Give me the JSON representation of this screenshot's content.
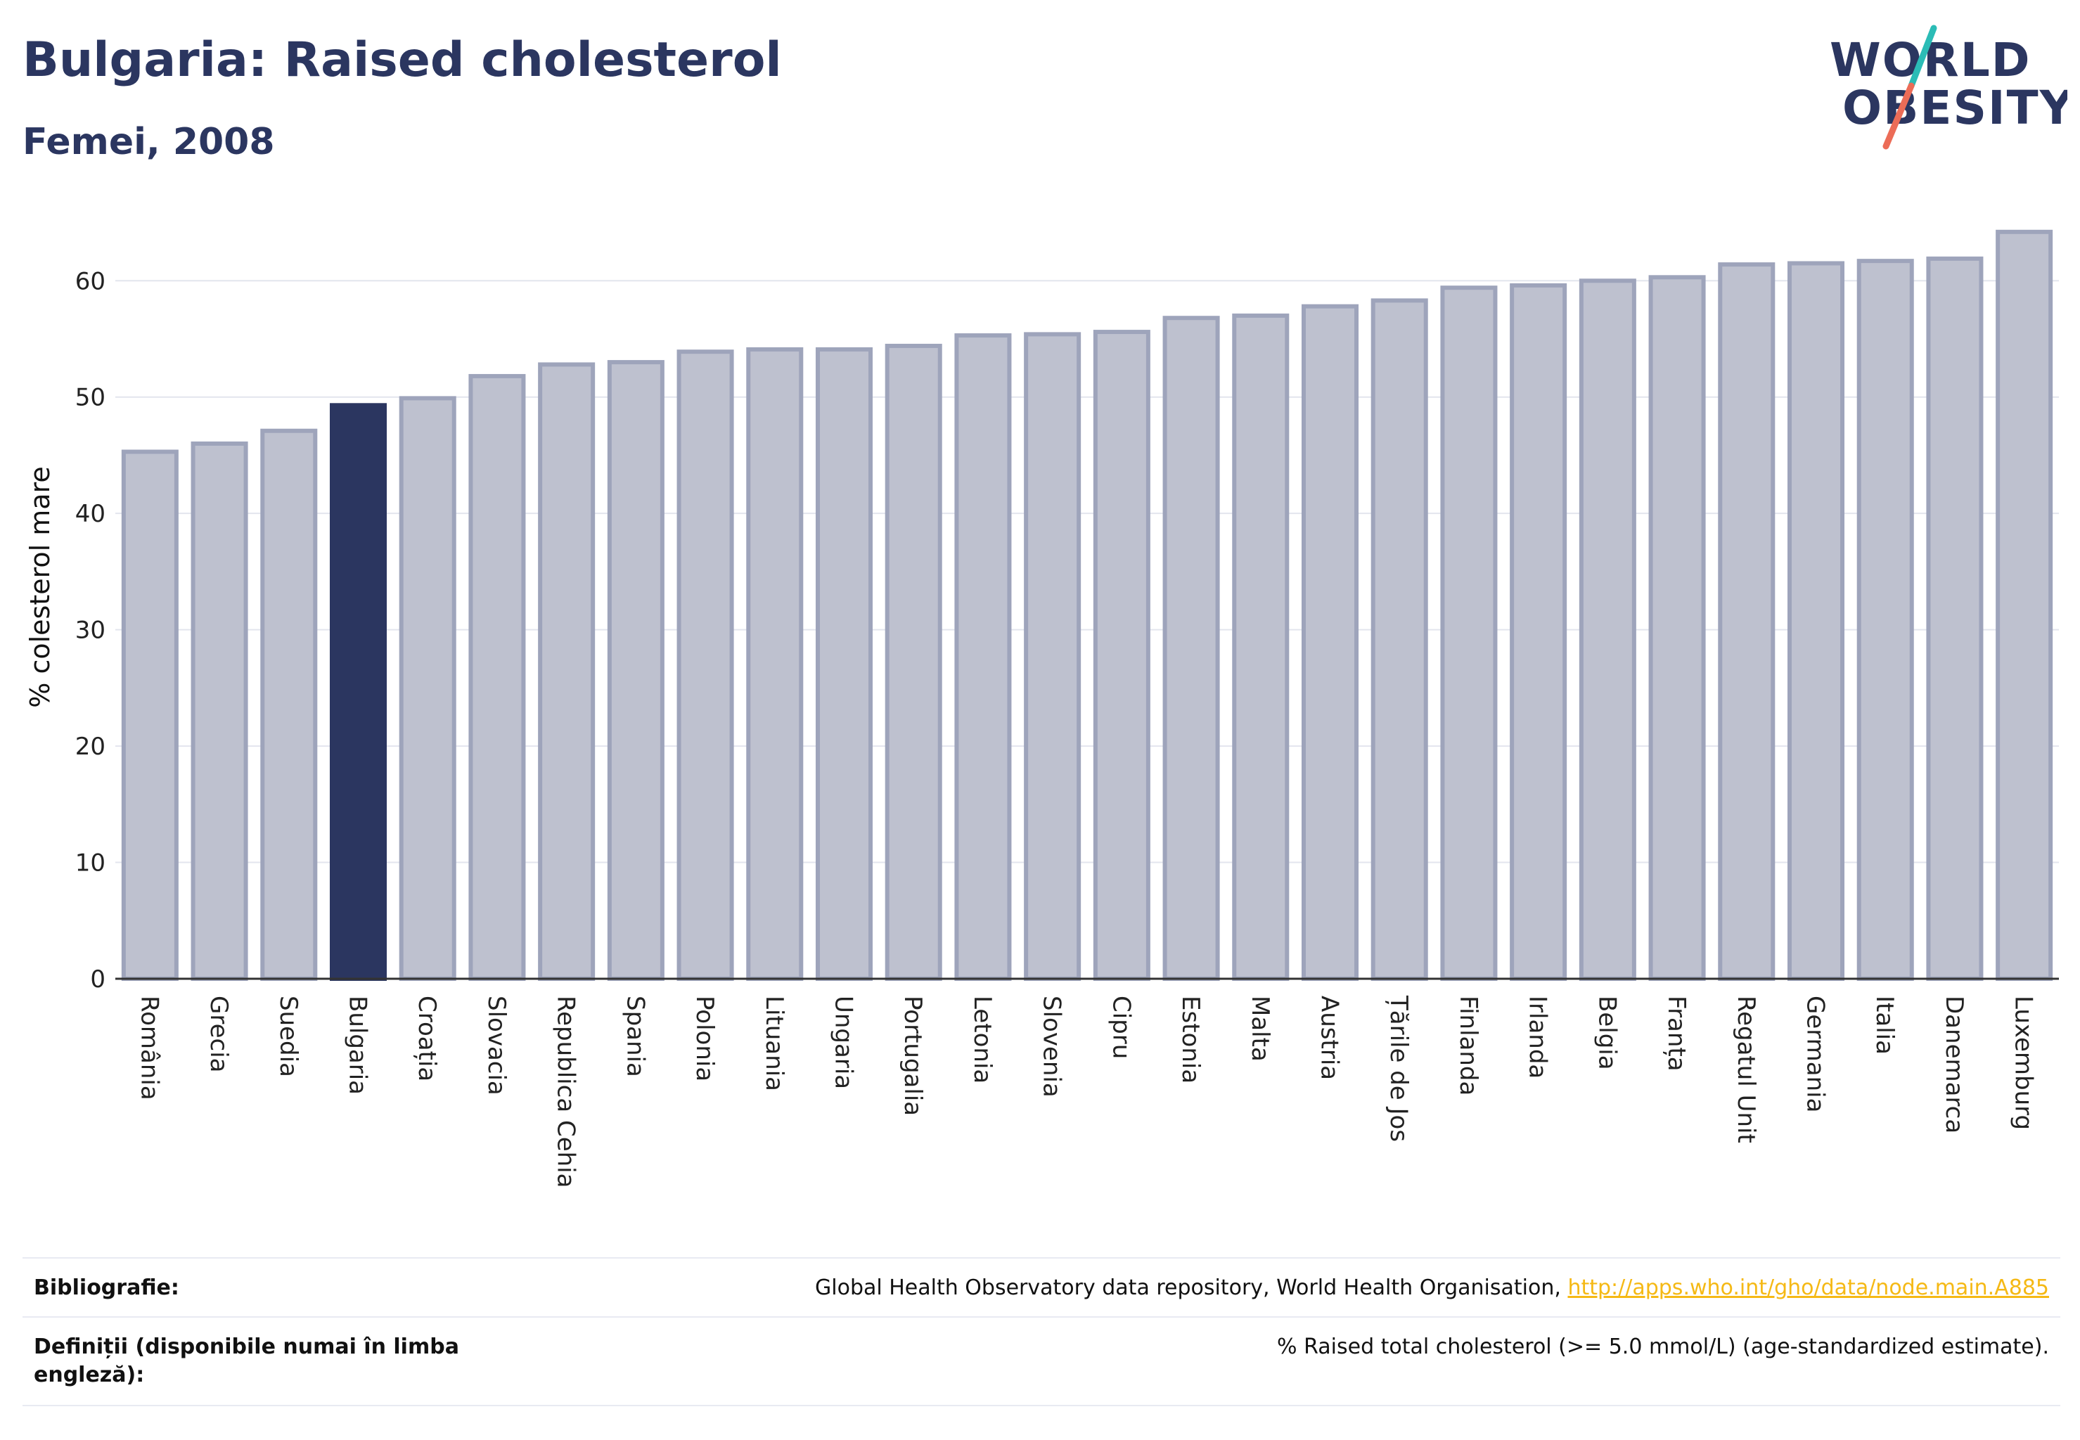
{
  "header": {
    "title": "Bulgaria: Raised cholesterol",
    "subtitle": "Femei, 2008"
  },
  "logo": {
    "line1": "WORLD",
    "line2": "OBESITY",
    "accent_teal": "#2bbcb6",
    "accent_coral": "#ec6c57"
  },
  "colors": {
    "bar": "#bec1cf",
    "bar_border": "#9ea4bb",
    "highlight": "#2b3660",
    "text": "#2b3660"
  },
  "chart_data": {
    "type": "bar",
    "ylabel": "% colesterol mare",
    "ylim": [
      0,
      66
    ],
    "yticks": [
      0,
      10,
      20,
      30,
      40,
      50,
      60
    ],
    "grid": true,
    "highlight": "Bulgaria",
    "categories": [
      "România",
      "Grecia",
      "Suedia",
      "Bulgaria",
      "Croația",
      "Slovacia",
      "Republica Cehia",
      "Spania",
      "Polonia",
      "Lituania",
      "Ungaria",
      "Portugalia",
      "Letonia",
      "Slovenia",
      "Cipru",
      "Estonia",
      "Malta",
      "Austria",
      "Țările de Jos",
      "Finlanda",
      "Irlanda",
      "Belgia",
      "Franța",
      "Regatul Unit",
      "Germania",
      "Italia",
      "Danemarca",
      "Luxemburg"
    ],
    "values": [
      45.3,
      46.0,
      47.1,
      49.3,
      49.9,
      51.8,
      52.8,
      53.0,
      53.9,
      54.1,
      54.1,
      54.4,
      55.3,
      55.4,
      55.6,
      56.8,
      57.0,
      57.8,
      58.3,
      59.4,
      59.6,
      60.0,
      60.3,
      61.4,
      61.5,
      61.7,
      61.9,
      64.2
    ]
  },
  "footer": {
    "bibliography_label": "Bibliografie:",
    "bibliography_text": "Global Health Observatory data repository, World Health Organisation, ",
    "bibliography_link": "http://apps.who.int/gho/data/node.main.A885",
    "definitions_label": "Definiții (disponibile numai în limba engleză):",
    "definitions_text": "% Raised total cholesterol (>= 5.0 mmol/L) (age-standardized estimate)."
  }
}
